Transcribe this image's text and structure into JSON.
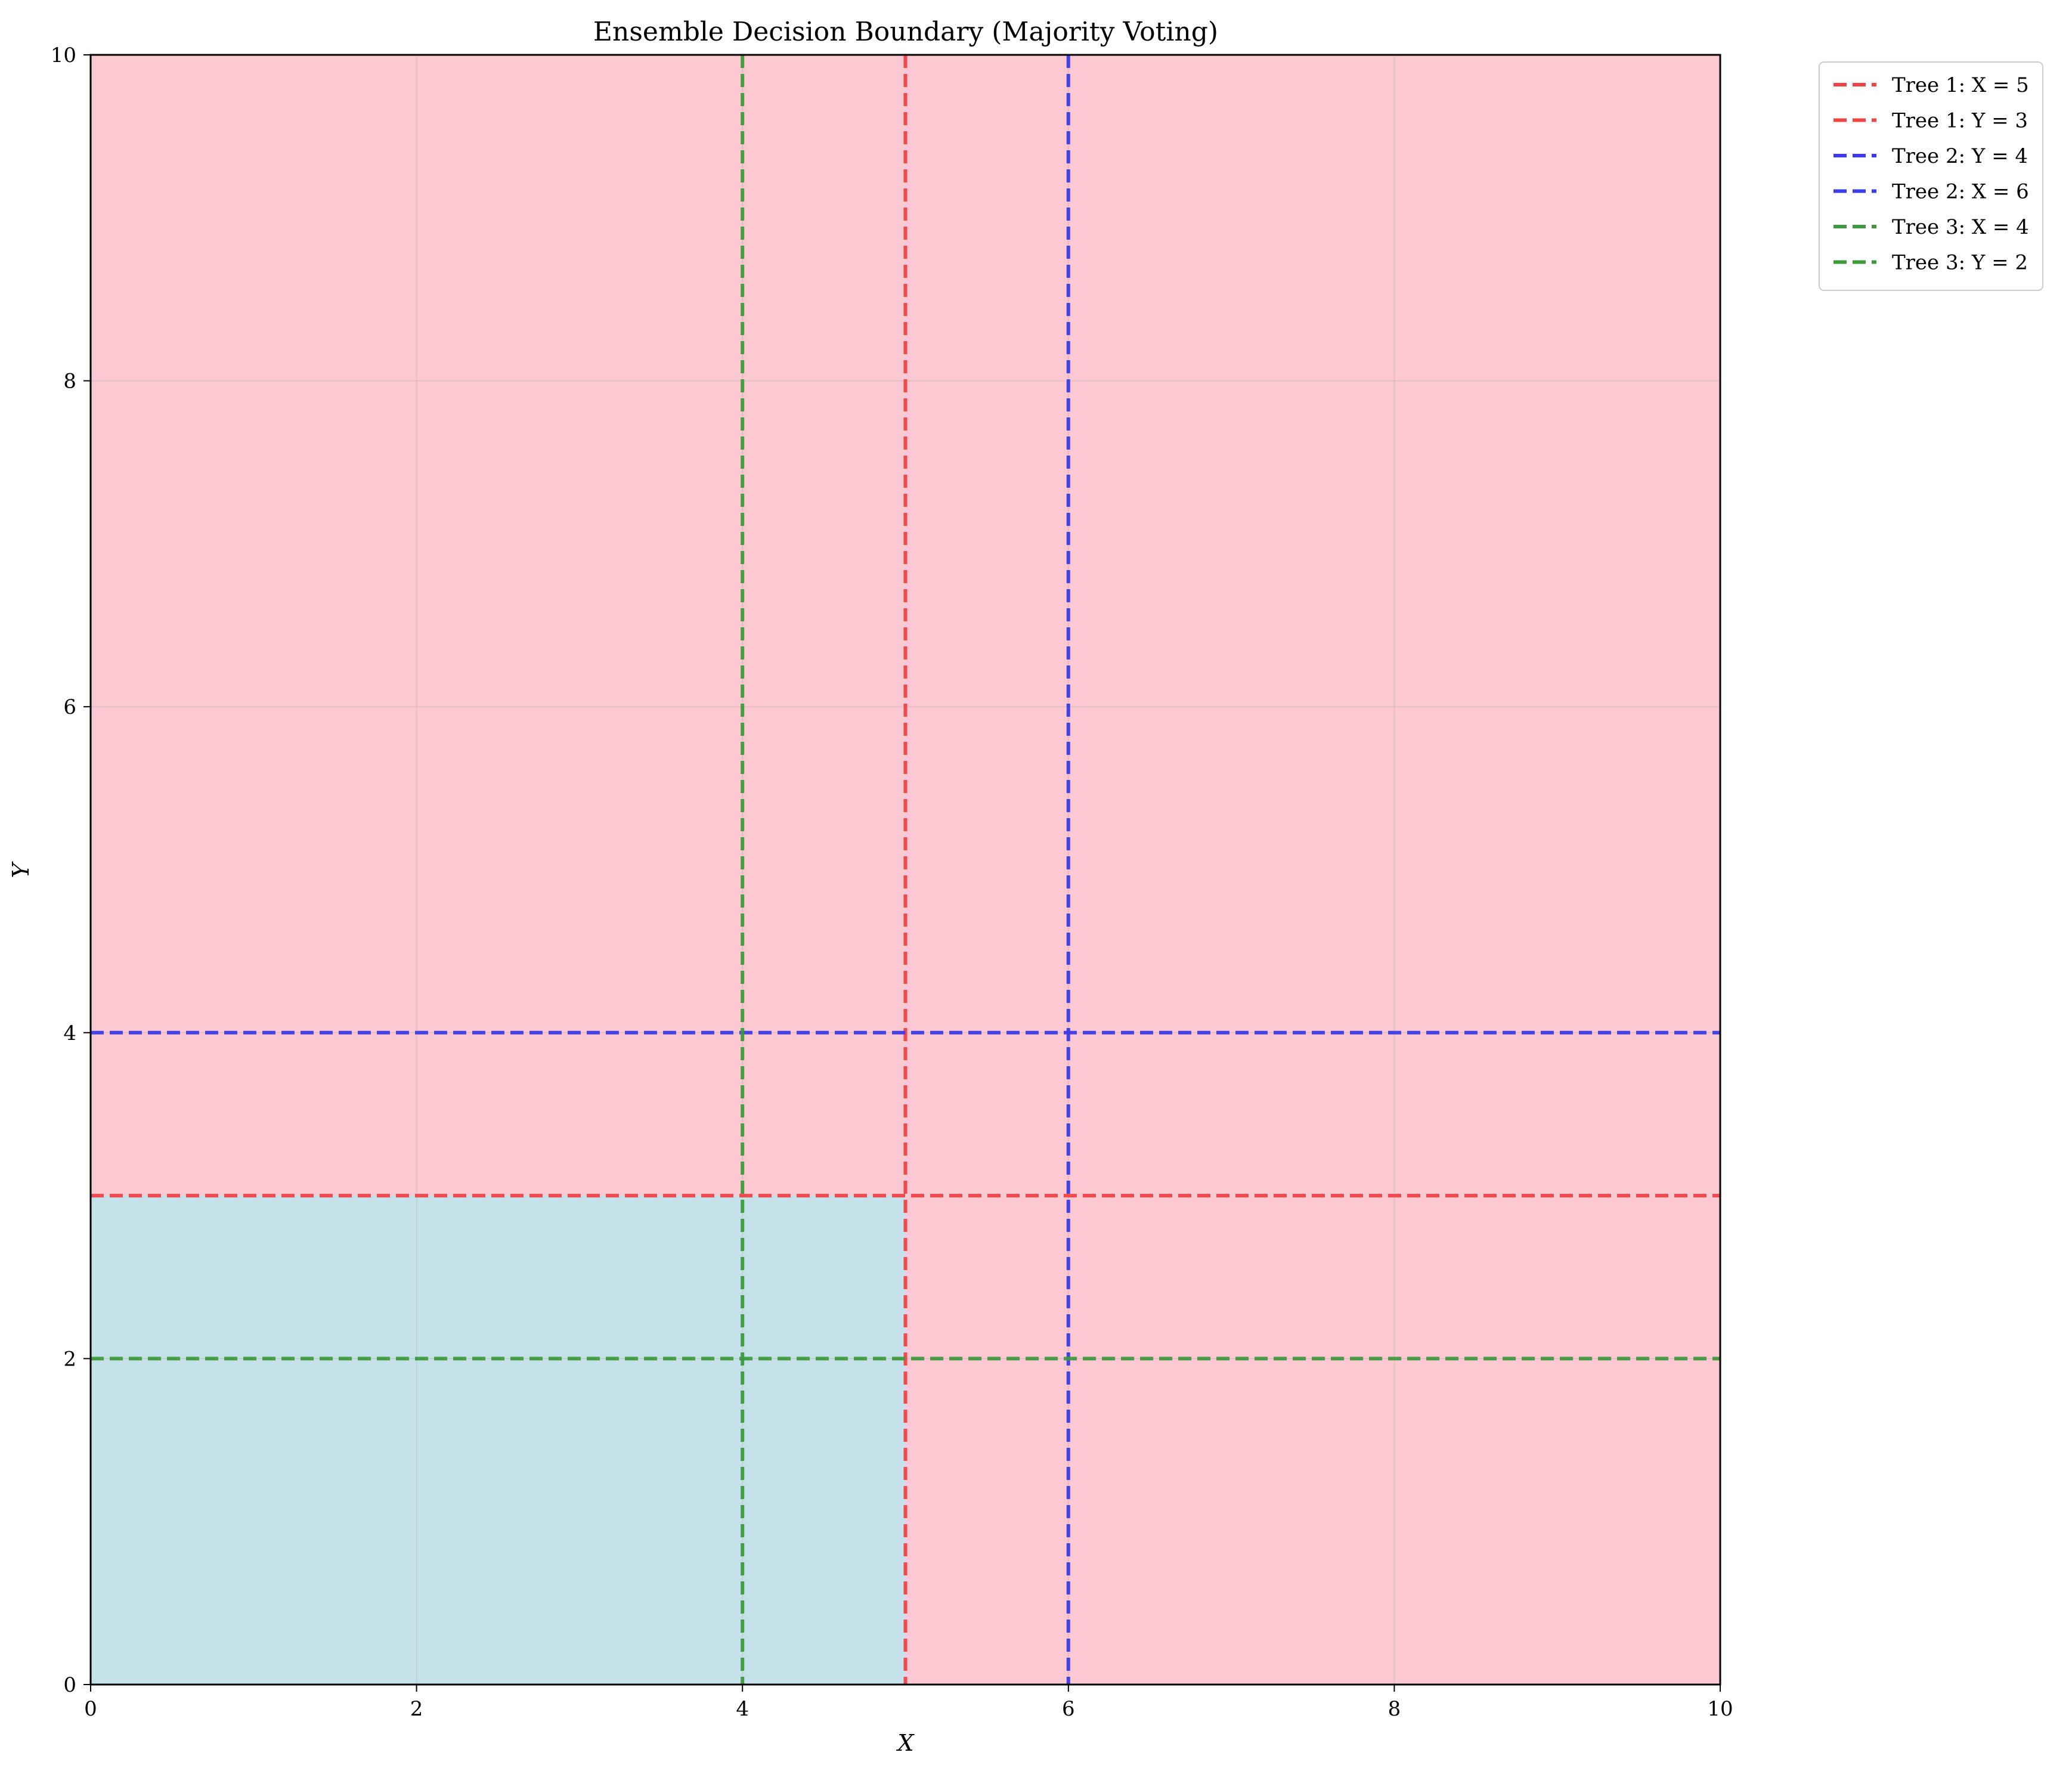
{
  "chart_data": {
    "type": "decision-boundary",
    "title": "Ensemble Decision Boundary (Majority Voting)",
    "xlabel": "X",
    "ylabel": "Y",
    "xlim": [
      0,
      10
    ],
    "ylim": [
      0,
      10
    ],
    "xticks": [
      0,
      2,
      4,
      6,
      8,
      10
    ],
    "yticks": [
      0,
      2,
      4,
      6,
      8,
      10
    ],
    "grid": true,
    "legend_position": "outside-top-right",
    "regions": [
      {
        "x": [
          0,
          10
        ],
        "y": [
          0,
          10
        ],
        "color": "#fcc8d1"
      },
      {
        "x": [
          0,
          5
        ],
        "y": [
          0,
          3
        ],
        "color": "#c5e2eb"
      }
    ],
    "series": [
      {
        "name": "Tree 1: X = 5",
        "orientation": "vertical",
        "value": 5,
        "color": "#ef4444"
      },
      {
        "name": "Tree 1: Y = 3",
        "orientation": "horizontal",
        "value": 3,
        "color": "#ef4444"
      },
      {
        "name": "Tree 2: Y = 4",
        "orientation": "horizontal",
        "value": 4,
        "color": "#3b3bea"
      },
      {
        "name": "Tree 2: X = 6",
        "orientation": "vertical",
        "value": 6,
        "color": "#3b3bea"
      },
      {
        "name": "Tree 3: X = 4",
        "orientation": "vertical",
        "value": 4,
        "color": "#3e9a3e"
      },
      {
        "name": "Tree 3: Y = 2",
        "orientation": "horizontal",
        "value": 2,
        "color": "#3e9a3e"
      }
    ]
  }
}
